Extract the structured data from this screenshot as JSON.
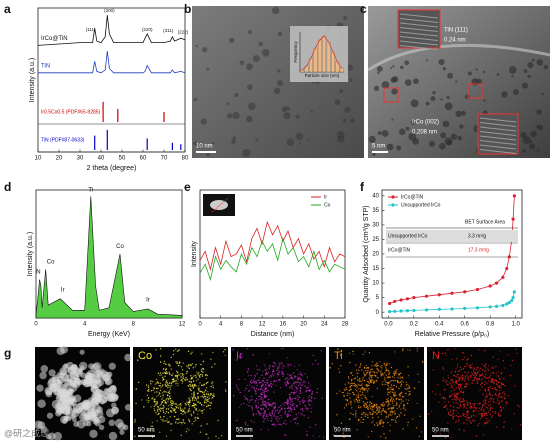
{
  "panel_labels": [
    "a",
    "b",
    "c",
    "d",
    "e",
    "f",
    "g"
  ],
  "chart_data": [
    {
      "type": "line",
      "xlabel": "2 theta (degree)",
      "ylabel": "Intensity (a.u.)",
      "xlim": [
        10,
        80
      ],
      "xticks": [
        10,
        20,
        30,
        40,
        50,
        60,
        70,
        80
      ],
      "ylim": [
        0,
        100
      ],
      "x": [
        10,
        20,
        30,
        36,
        37,
        38,
        40,
        42,
        43,
        44,
        46,
        50,
        60,
        61,
        62,
        64,
        70,
        73,
        74,
        75,
        78,
        80
      ],
      "series": [
        {
          "name": "IrCo@TiN",
          "color": "#111111",
          "values": [
            74,
            75,
            76,
            76,
            86,
            77,
            76,
            80,
            95,
            82,
            76,
            76,
            76,
            79,
            82,
            76,
            76,
            77,
            80,
            77,
            79,
            78
          ]
        },
        {
          "name": "TiN",
          "color": "#1f3fbf",
          "values": [
            55,
            55,
            55,
            55,
            63,
            56,
            55,
            57,
            70,
            58,
            55,
            55,
            55,
            56,
            60,
            55,
            55,
            55,
            57,
            55,
            56,
            55
          ]
        }
      ],
      "references": [
        {
          "name": "Ir0.5Co0.5 (PDF#65-9285)",
          "color": "#cc0000",
          "x": [
            41,
            48,
            70
          ],
          "values": [
            14,
            9,
            7
          ]
        },
        {
          "name": "TiN (PDF#87-0633)",
          "color": "#0000cc",
          "x": [
            37,
            43,
            62,
            74,
            78
          ],
          "values": [
            10,
            14,
            8,
            5,
            4
          ]
        }
      ],
      "annotations": [
        "(111)",
        "(200)",
        "(220)",
        "(311)",
        "(222)"
      ]
    },
    {
      "type": "area",
      "xlabel": "Energy (KeV)",
      "ylabel": "Intensity (a.u.)",
      "color": "#55cc44",
      "xlim": [
        0,
        12
      ],
      "xticks": [
        0,
        4,
        8,
        12
      ],
      "ylim": [
        0,
        100
      ],
      "x": [
        0,
        0.2,
        0.3,
        0.4,
        0.5,
        0.8,
        1.0,
        2.0,
        3,
        4,
        4.5,
        4.9,
        5.2,
        6,
        6.9,
        7.3,
        8,
        9.2,
        10,
        12
      ],
      "values": [
        2,
        20,
        30,
        25,
        8,
        38,
        10,
        15,
        6,
        6,
        95,
        25,
        6,
        8,
        50,
        12,
        5,
        7,
        3,
        2
      ],
      "annotations": [
        "Ti",
        "Co",
        "N",
        "Ir",
        "Co",
        "Ir"
      ]
    },
    {
      "type": "line",
      "xlabel": "Distance (nm)",
      "ylabel": "Intensity",
      "legend": "upper right",
      "xlim": [
        0,
        28
      ],
      "xticks": [
        0,
        4,
        8,
        12,
        16,
        20,
        24,
        28
      ],
      "ylim": [
        0,
        100
      ],
      "x": [
        0,
        1,
        2,
        3,
        4,
        5,
        6,
        7,
        8,
        9,
        10,
        11,
        12,
        13,
        14,
        15,
        16,
        17,
        18,
        19,
        20,
        21,
        22,
        23,
        24,
        25,
        26,
        27,
        28
      ],
      "series": [
        {
          "name": "Ir",
          "color": "#dd2222",
          "values": [
            45,
            52,
            38,
            55,
            42,
            60,
            48,
            50,
            57,
            44,
            62,
            70,
            58,
            75,
            65,
            72,
            60,
            68,
            55,
            62,
            50,
            58,
            46,
            52,
            40,
            55,
            44,
            50,
            48
          ]
        },
        {
          "name": "Co",
          "color": "#22aa22",
          "values": [
            35,
            42,
            30,
            48,
            38,
            45,
            40,
            36,
            50,
            42,
            55,
            48,
            60,
            52,
            58,
            45,
            62,
            50,
            55,
            44,
            48,
            40,
            52,
            38,
            45,
            36,
            42,
            40,
            38
          ]
        }
      ]
    },
    {
      "type": "line",
      "markers": true,
      "xlabel": "Relative Pressure (p/p₀)",
      "ylabel": "Quantity Adsorbed (cm³/g STP)",
      "legend": "upper left",
      "xlim": [
        -0.05,
        1.05
      ],
      "xticks": [
        {
          "value": 0,
          "label": "0.0"
        },
        0.2,
        0.4,
        0.6,
        0.8,
        {
          "value": 1,
          "label": "1.0"
        }
      ],
      "ylim": [
        -2,
        42
      ],
      "yticks": [
        0,
        5,
        10,
        15,
        20,
        25,
        30,
        35,
        40
      ],
      "x": [
        0.01,
        0.05,
        0.1,
        0.15,
        0.2,
        0.3,
        0.4,
        0.5,
        0.6,
        0.7,
        0.8,
        0.85,
        0.9,
        0.93,
        0.95,
        0.97,
        0.98,
        0.99
      ],
      "series": [
        {
          "name": "IrCo@TiN",
          "color": "#dd2233",
          "values": [
            3,
            3.7,
            4.2,
            4.6,
            5,
            5.5,
            6,
            6.5,
            7,
            7.8,
            9,
            10,
            12,
            15,
            19,
            25,
            32,
            40
          ]
        },
        {
          "name": "Unsupported IrCo",
          "color": "#22c4c8",
          "values": [
            0.2,
            0.3,
            0.4,
            0.5,
            0.6,
            0.8,
            1,
            1.1,
            1.3,
            1.5,
            1.8,
            2,
            2.3,
            2.8,
            3.3,
            4,
            5,
            7
          ]
        }
      ],
      "table": {
        "header": "BET Surface Area",
        "rows": [
          [
            "Unsupported IrCo",
            "3.3 m²/g"
          ],
          [
            "IrCo@TiN",
            "17.3 m²/g"
          ]
        ]
      }
    },
    {
      "type": "bar",
      "xlabel": "Particle size (nm)",
      "ylabel": "Frequency",
      "color": "#e8b98a",
      "values": [
        5,
        15,
        35,
        60,
        80,
        90,
        75,
        50,
        25,
        10
      ]
    }
  ],
  "tem_b": {
    "scale": "10 nm"
  },
  "tem_c": {
    "scale": "5 nm",
    "insets": [
      {
        "plane": "TiN (111)",
        "spacing": "0.24 nm"
      },
      {
        "plane": "IrCo (002)",
        "spacing": "0.208 nm"
      }
    ]
  },
  "mapping": {
    "channels": [
      "Co",
      "Ir",
      "Ti",
      "N"
    ],
    "scale": "50 nm"
  },
  "watermark": "@研之成理"
}
